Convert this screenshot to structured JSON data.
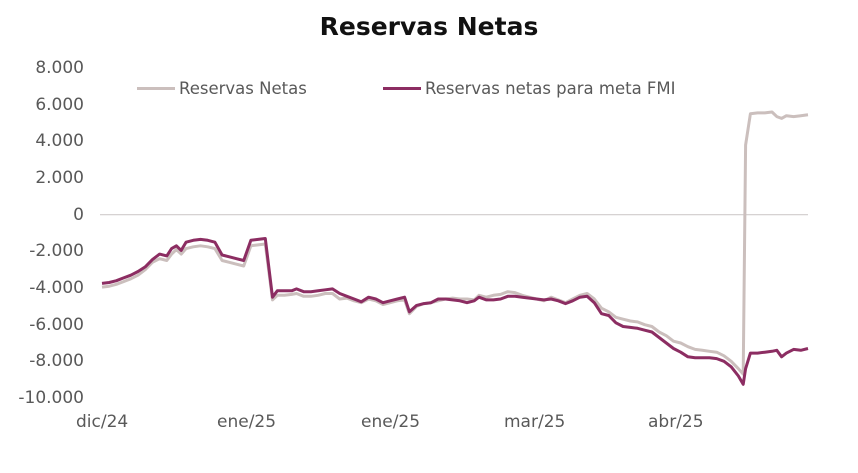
{
  "chart_data": {
    "type": "line",
    "title": "Reservas Netas",
    "xlabel": "",
    "ylabel": "",
    "ylim": [
      -10000,
      8000
    ],
    "yticks": [
      "8.000",
      "6.000",
      "4.000",
      "2.000",
      "0",
      "-2.000",
      "-4.000",
      "-6.000",
      "-8.000",
      "-10.000"
    ],
    "ytick_values": [
      8000,
      6000,
      4000,
      2000,
      0,
      -2000,
      -4000,
      -6000,
      -8000,
      -10000
    ],
    "xticks": [
      "dic/24",
      "ene/25",
      "ene/25",
      "mar/25",
      "abr/25"
    ],
    "grid": false,
    "zero_line": true,
    "legend_position": "top",
    "colors": {
      "reservas_netas": "#cbbfbd",
      "reservas_meta_fmi": "#8c2d62",
      "axis_text": "#595959",
      "zero_line": "#d0cccc",
      "title": "#111111"
    },
    "series": [
      {
        "name": "Reservas Netas",
        "color": "#cbbfbd",
        "points": [
          [
            0,
            -3950
          ],
          [
            3,
            -3900
          ],
          [
            6,
            -3800
          ],
          [
            9,
            -3650
          ],
          [
            12,
            -3500
          ],
          [
            15,
            -3300
          ],
          [
            18,
            -3000
          ],
          [
            21,
            -2600
          ],
          [
            24,
            -2400
          ],
          [
            27,
            -2500
          ],
          [
            29,
            -2150
          ],
          [
            31,
            -1900
          ],
          [
            33,
            -2150
          ],
          [
            35,
            -1850
          ],
          [
            38,
            -1750
          ],
          [
            41,
            -1700
          ],
          [
            44,
            -1750
          ],
          [
            47,
            -1850
          ],
          [
            50,
            -2500
          ],
          [
            53,
            -2600
          ],
          [
            56,
            -2700
          ],
          [
            59,
            -2800
          ],
          [
            62,
            -1700
          ],
          [
            65,
            -1650
          ],
          [
            68,
            -1600
          ],
          [
            71,
            -4650
          ],
          [
            73,
            -4400
          ],
          [
            76,
            -4400
          ],
          [
            79,
            -4350
          ],
          [
            81,
            -4300
          ],
          [
            84,
            -4450
          ],
          [
            87,
            -4450
          ],
          [
            90,
            -4400
          ],
          [
            93,
            -4300
          ],
          [
            96,
            -4300
          ],
          [
            99,
            -4600
          ],
          [
            102,
            -4550
          ],
          [
            105,
            -4700
          ],
          [
            108,
            -4800
          ],
          [
            111,
            -4600
          ],
          [
            114,
            -4700
          ],
          [
            117,
            -4900
          ],
          [
            120,
            -4800
          ],
          [
            123,
            -4700
          ],
          [
            126,
            -4650
          ],
          [
            128,
            -5400
          ],
          [
            131,
            -5000
          ],
          [
            134,
            -4850
          ],
          [
            137,
            -4800
          ],
          [
            140,
            -4700
          ],
          [
            143,
            -4600
          ],
          [
            146,
            -4550
          ],
          [
            149,
            -4600
          ],
          [
            152,
            -4600
          ],
          [
            155,
            -4650
          ],
          [
            157,
            -4400
          ],
          [
            160,
            -4500
          ],
          [
            163,
            -4400
          ],
          [
            166,
            -4350
          ],
          [
            169,
            -4200
          ],
          [
            172,
            -4250
          ],
          [
            175,
            -4400
          ],
          [
            178,
            -4500
          ],
          [
            181,
            -4600
          ],
          [
            184,
            -4700
          ],
          [
            187,
            -4500
          ],
          [
            190,
            -4650
          ],
          [
            193,
            -4800
          ],
          [
            196,
            -4600
          ],
          [
            199,
            -4400
          ],
          [
            202,
            -4300
          ],
          [
            205,
            -4600
          ],
          [
            208,
            -5100
          ],
          [
            211,
            -5300
          ],
          [
            214,
            -5600
          ],
          [
            217,
            -5700
          ],
          [
            220,
            -5800
          ],
          [
            223,
            -5850
          ],
          [
            226,
            -6000
          ],
          [
            229,
            -6100
          ],
          [
            232,
            -6400
          ],
          [
            235,
            -6600
          ],
          [
            238,
            -6900
          ],
          [
            241,
            -7000
          ],
          [
            244,
            -7200
          ],
          [
            247,
            -7350
          ],
          [
            250,
            -7400
          ],
          [
            253,
            -7450
          ],
          [
            256,
            -7500
          ],
          [
            259,
            -7700
          ],
          [
            262,
            -8000
          ],
          [
            265,
            -8400
          ],
          [
            267,
            -8700
          ],
          [
            268,
            3800
          ],
          [
            270,
            5500
          ],
          [
            273,
            5550
          ],
          [
            276,
            5550
          ],
          [
            279,
            5600
          ],
          [
            281,
            5350
          ],
          [
            283,
            5250
          ],
          [
            285,
            5400
          ],
          [
            288,
            5350
          ],
          [
            291,
            5400
          ],
          [
            294,
            5450
          ]
        ]
      },
      {
        "name": "Reservas netas para meta FMI",
        "color": "#8c2d62",
        "points": [
          [
            0,
            -3750
          ],
          [
            3,
            -3700
          ],
          [
            6,
            -3600
          ],
          [
            9,
            -3450
          ],
          [
            12,
            -3300
          ],
          [
            15,
            -3100
          ],
          [
            18,
            -2850
          ],
          [
            21,
            -2450
          ],
          [
            24,
            -2150
          ],
          [
            27,
            -2250
          ],
          [
            29,
            -1850
          ],
          [
            31,
            -1700
          ],
          [
            33,
            -1950
          ],
          [
            35,
            -1500
          ],
          [
            38,
            -1400
          ],
          [
            41,
            -1350
          ],
          [
            44,
            -1400
          ],
          [
            47,
            -1500
          ],
          [
            50,
            -2200
          ],
          [
            53,
            -2300
          ],
          [
            56,
            -2400
          ],
          [
            59,
            -2500
          ],
          [
            62,
            -1400
          ],
          [
            65,
            -1350
          ],
          [
            68,
            -1300
          ],
          [
            71,
            -4500
          ],
          [
            73,
            -4150
          ],
          [
            76,
            -4150
          ],
          [
            79,
            -4150
          ],
          [
            81,
            -4050
          ],
          [
            84,
            -4200
          ],
          [
            87,
            -4200
          ],
          [
            90,
            -4150
          ],
          [
            93,
            -4100
          ],
          [
            96,
            -4050
          ],
          [
            99,
            -4300
          ],
          [
            102,
            -4450
          ],
          [
            105,
            -4600
          ],
          [
            108,
            -4750
          ],
          [
            111,
            -4500
          ],
          [
            114,
            -4600
          ],
          [
            117,
            -4800
          ],
          [
            120,
            -4700
          ],
          [
            123,
            -4600
          ],
          [
            126,
            -4500
          ],
          [
            128,
            -5300
          ],
          [
            131,
            -4950
          ],
          [
            134,
            -4850
          ],
          [
            137,
            -4800
          ],
          [
            140,
            -4600
          ],
          [
            143,
            -4600
          ],
          [
            146,
            -4650
          ],
          [
            149,
            -4700
          ],
          [
            152,
            -4800
          ],
          [
            155,
            -4700
          ],
          [
            157,
            -4500
          ],
          [
            160,
            -4650
          ],
          [
            163,
            -4650
          ],
          [
            166,
            -4600
          ],
          [
            169,
            -4450
          ],
          [
            172,
            -4450
          ],
          [
            175,
            -4500
          ],
          [
            178,
            -4550
          ],
          [
            181,
            -4600
          ],
          [
            184,
            -4650
          ],
          [
            187,
            -4600
          ],
          [
            190,
            -4700
          ],
          [
            193,
            -4850
          ],
          [
            196,
            -4700
          ],
          [
            199,
            -4500
          ],
          [
            202,
            -4450
          ],
          [
            205,
            -4800
          ],
          [
            208,
            -5400
          ],
          [
            211,
            -5500
          ],
          [
            214,
            -5900
          ],
          [
            217,
            -6100
          ],
          [
            220,
            -6150
          ],
          [
            223,
            -6200
          ],
          [
            226,
            -6300
          ],
          [
            229,
            -6400
          ],
          [
            232,
            -6700
          ],
          [
            235,
            -7000
          ],
          [
            238,
            -7300
          ],
          [
            241,
            -7500
          ],
          [
            244,
            -7750
          ],
          [
            247,
            -7800
          ],
          [
            250,
            -7800
          ],
          [
            253,
            -7800
          ],
          [
            256,
            -7850
          ],
          [
            259,
            -8000
          ],
          [
            262,
            -8300
          ],
          [
            265,
            -8800
          ],
          [
            267,
            -9250
          ],
          [
            268,
            -8400
          ],
          [
            270,
            -7550
          ],
          [
            273,
            -7550
          ],
          [
            276,
            -7500
          ],
          [
            279,
            -7450
          ],
          [
            281,
            -7400
          ],
          [
            283,
            -7750
          ],
          [
            285,
            -7550
          ],
          [
            288,
            -7350
          ],
          [
            291,
            -7400
          ],
          [
            294,
            -7300
          ]
        ]
      }
    ]
  },
  "legend": {
    "items": [
      {
        "label": "Reservas Netas",
        "color": "#cbbfbd"
      },
      {
        "label": "Reservas netas para meta FMI",
        "color": "#8c2d62"
      }
    ]
  }
}
